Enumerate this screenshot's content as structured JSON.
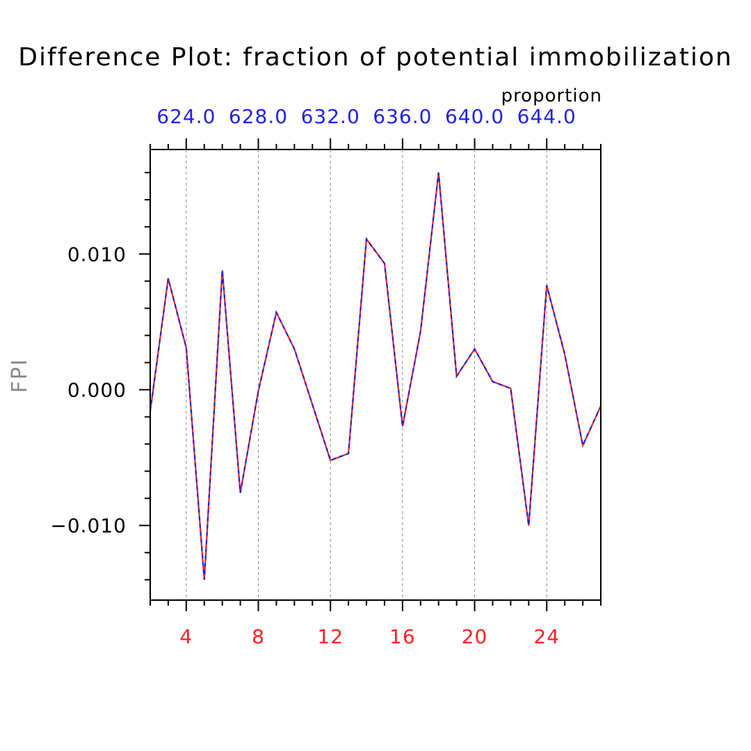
{
  "chart_data": {
    "type": "line",
    "title": "Difference Plot: fraction of potential immobilization",
    "units": "proportion",
    "ylabel": "FPI",
    "xlabel": "",
    "xlim": [
      2,
      27
    ],
    "ylim": [
      -0.0155,
      0.0177
    ],
    "x_ticks": [
      4,
      8,
      12,
      16,
      20,
      24
    ],
    "x_tick_labels": [
      "4",
      "8",
      "12",
      "16",
      "20",
      "24"
    ],
    "x_minor_step": 1,
    "top_ticks": [
      4,
      8,
      12,
      16,
      20,
      24
    ],
    "top_tick_labels": [
      "624.0",
      "628.0",
      "632.0",
      "636.0",
      "640.0",
      "644.0"
    ],
    "y_ticks": [
      -0.01,
      0.0,
      0.01
    ],
    "y_tick_labels": [
      "−0.010",
      "0.000",
      "0.010"
    ],
    "y_minor_step": 0.002,
    "grid": "vertical dashed at major x ticks",
    "colors": {
      "bottom_axis_labels": "#ff2020",
      "top_axis_labels": "#2020ee",
      "line_primary": "#ff2020",
      "line_secondary": "#2020dd",
      "grid": "#888888",
      "ylabel": "#888888"
    },
    "series": [
      {
        "x": [
          2,
          3,
          4,
          5,
          6,
          7,
          8,
          9,
          10,
          11,
          12,
          13,
          14,
          15,
          16,
          17,
          18,
          19,
          20,
          21,
          22,
          23,
          24,
          25,
          26,
          27
        ],
        "values": [
          -0.0016,
          0.0082,
          0.0031,
          -0.014,
          0.0088,
          -0.0076,
          -0.0001,
          0.0057,
          0.003,
          -0.0011,
          -0.0052,
          -0.0047,
          0.0111,
          0.0093,
          -0.0027,
          0.0043,
          0.016,
          0.001,
          0.003,
          0.0006,
          0.0001,
          -0.01,
          0.0077,
          0.0026,
          -0.0041,
          -0.0012
        ]
      }
    ]
  }
}
